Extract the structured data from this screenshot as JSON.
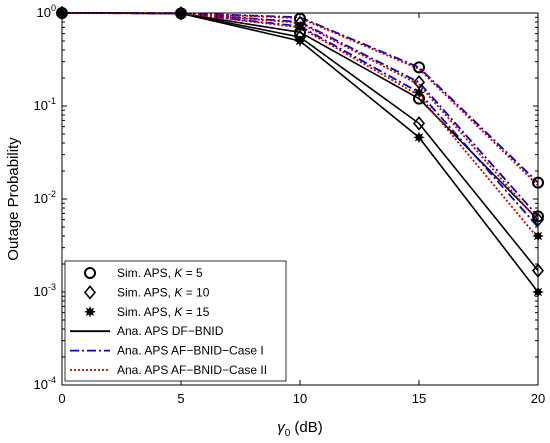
{
  "chart_data": {
    "type": "line",
    "xlabel_symbol": "γ",
    "xlabel_subscript": "0",
    "xlabel_unit": " (dB)",
    "ylabel": "Outage Probability",
    "x_ticks": [
      "0",
      "5",
      "10",
      "15",
      "20"
    ],
    "y_ticks": [
      {
        "base": "10",
        "exp": "0"
      },
      {
        "base": "10",
        "exp": "-1"
      },
      {
        "base": "10",
        "exp": "-2"
      },
      {
        "base": "10",
        "exp": "-3"
      },
      {
        "base": "10",
        "exp": "-4"
      }
    ],
    "xlim": [
      0,
      20
    ],
    "ylim": [
      0.0001,
      1
    ],
    "yscale": "log",
    "grid": false,
    "legend_position": "bottom-left",
    "x": [
      0,
      5,
      10,
      15,
      20
    ],
    "series": [
      {
        "name": "Ana. APS DF-BNID, K = 5",
        "K": 5,
        "scheme": "DF",
        "values": [
          1.0,
          0.99,
          0.62,
          0.12,
          0.006
        ],
        "color": "#000000",
        "dash": "solid"
      },
      {
        "name": "Ana. APS DF-BNID, K = 10",
        "K": 10,
        "scheme": "DF",
        "values": [
          1.0,
          0.99,
          0.55,
          0.065,
          0.0017
        ],
        "color": "#000000",
        "dash": "solid"
      },
      {
        "name": "Ana. APS DF-BNID, K = 15",
        "K": 15,
        "scheme": "DF",
        "values": [
          1.0,
          0.99,
          0.5,
          0.046,
          0.001
        ],
        "color": "#000000",
        "dash": "solid"
      },
      {
        "name": "Ana. APS AF-BNID-Case I, K = 5",
        "K": 5,
        "scheme": "AF1",
        "values": [
          1.0,
          0.995,
          0.9,
          0.26,
          0.015
        ],
        "color": "#0000cc",
        "dash": "dashdot"
      },
      {
        "name": "Ana. APS AF-BNID-Case I, K = 10",
        "K": 10,
        "scheme": "AF1",
        "values": [
          1.0,
          0.993,
          0.8,
          0.18,
          0.0065
        ],
        "color": "#0000cc",
        "dash": "dashdot"
      },
      {
        "name": "Ana. APS AF-BNID-Case I, K = 15",
        "K": 15,
        "scheme": "AF1",
        "values": [
          1.0,
          0.99,
          0.72,
          0.14,
          0.005
        ],
        "color": "#0000cc",
        "dash": "dashdot"
      },
      {
        "name": "Ana. APS AF-BNID-Case II, K = 5",
        "K": 5,
        "scheme": "AF2",
        "values": [
          1.0,
          0.995,
          0.88,
          0.25,
          0.014
        ],
        "color": "#cc0000",
        "dash": "dotted"
      },
      {
        "name": "Ana. APS AF-BNID-Case II, K = 10",
        "K": 10,
        "scheme": "AF2",
        "values": [
          1.0,
          0.993,
          0.78,
          0.17,
          0.0058
        ],
        "color": "#cc0000",
        "dash": "dotted"
      },
      {
        "name": "Ana. APS AF-BNID-Case II, K = 15",
        "K": 15,
        "scheme": "AF2",
        "values": [
          1.0,
          0.99,
          0.7,
          0.13,
          0.0038
        ],
        "color": "#cc0000",
        "dash": "dotted"
      }
    ],
    "markers": [
      {
        "name": "Sim. APS, K = 5",
        "marker": "circle",
        "points": [
          {
            "x": 0,
            "y": 1.0
          },
          {
            "x": 5,
            "y": 0.99
          },
          {
            "x": 10,
            "y": 0.87
          },
          {
            "x": 10,
            "y": 0.62
          },
          {
            "x": 15,
            "y": 0.26
          },
          {
            "x": 15,
            "y": 0.12
          },
          {
            "x": 20,
            "y": 0.015
          },
          {
            "x": 20,
            "y": 0.0065
          }
        ]
      },
      {
        "name": "Sim. APS, K = 10",
        "marker": "diamond",
        "points": [
          {
            "x": 0,
            "y": 1.0
          },
          {
            "x": 5,
            "y": 0.99
          },
          {
            "x": 10,
            "y": 0.78
          },
          {
            "x": 10,
            "y": 0.55
          },
          {
            "x": 15,
            "y": 0.18
          },
          {
            "x": 15,
            "y": 0.065
          },
          {
            "x": 20,
            "y": 0.006
          },
          {
            "x": 20,
            "y": 0.0017
          }
        ]
      },
      {
        "name": "Sim. APS, K = 15",
        "marker": "star",
        "points": [
          {
            "x": 0,
            "y": 1.0
          },
          {
            "x": 5,
            "y": 0.99
          },
          {
            "x": 10,
            "y": 0.7
          },
          {
            "x": 10,
            "y": 0.5
          },
          {
            "x": 15,
            "y": 0.14
          },
          {
            "x": 15,
            "y": 0.046
          },
          {
            "x": 20,
            "y": 0.004
          },
          {
            "x": 20,
            "y": 0.001
          }
        ]
      }
    ],
    "legend": [
      {
        "kind": "marker",
        "marker": "circle",
        "prefix": "Sim. APS, ",
        "k_symbol": "K",
        "k_value": " = 5"
      },
      {
        "kind": "marker",
        "marker": "diamond",
        "prefix": "Sim. APS, ",
        "k_symbol": "K",
        "k_value": " = 10"
      },
      {
        "kind": "marker",
        "marker": "star",
        "prefix": "Sim. APS, ",
        "k_symbol": "K",
        "k_value": " = 15"
      },
      {
        "kind": "line",
        "color": "#000000",
        "dash": "solid",
        "label": "Ana. APS DF−BNID"
      },
      {
        "kind": "line",
        "color": "#0000cc",
        "dash": "dashdot",
        "label": "Ana. APS AF−BNID−Case I"
      },
      {
        "kind": "line",
        "color": "#cc0000",
        "dash": "dotted",
        "label": "Ana. APS AF−BNID−Case II"
      }
    ]
  }
}
